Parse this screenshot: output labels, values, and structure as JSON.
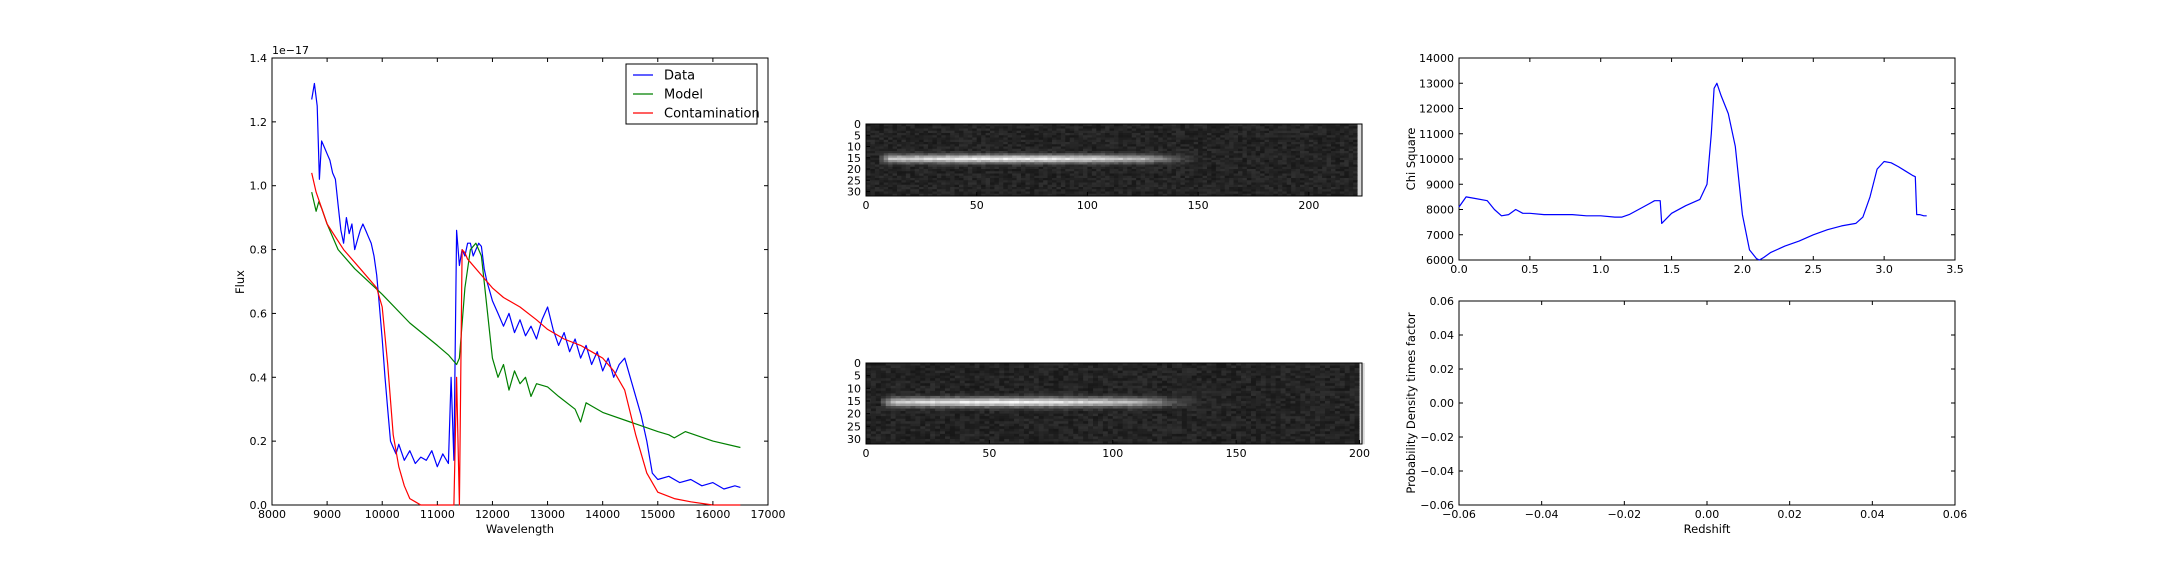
{
  "chart_data": [
    {
      "type": "line",
      "xlabel": "Wavelength",
      "ylabel": "Flux",
      "offset_text": "1e−17",
      "xlim": [
        8000,
        17000
      ],
      "ylim": [
        0,
        1.4
      ],
      "xticks": [
        "8000",
        "9000",
        "10000",
        "11000",
        "12000",
        "13000",
        "14000",
        "15000",
        "16000",
        "17000"
      ],
      "xtick_values": [
        8000,
        9000,
        10000,
        11000,
        12000,
        13000,
        14000,
        15000,
        16000,
        17000
      ],
      "yticks": [
        "0.0",
        "0.2",
        "0.4",
        "0.6",
        "0.8",
        "1.0",
        "1.2",
        "1.4"
      ],
      "ytick_values": [
        0,
        0.2,
        0.4,
        0.6,
        0.8,
        1.0,
        1.2,
        1.4
      ],
      "legend_position": "top-right",
      "series": [
        {
          "name": "Data",
          "color": "#0000ff",
          "x": [
            8720,
            8770,
            8820,
            8860,
            8900,
            8950,
            9000,
            9050,
            9100,
            9150,
            9200,
            9250,
            9300,
            9350,
            9400,
            9450,
            9500,
            9550,
            9600,
            9650,
            9700,
            9750,
            9800,
            9850,
            9900,
            9950,
            10000,
            10050,
            10100,
            10150,
            10200,
            10250,
            10300,
            10400,
            10500,
            10600,
            10700,
            10800,
            10900,
            11000,
            11100,
            11200,
            11250,
            11300,
            11350,
            11400,
            11450,
            11500,
            11550,
            11600,
            11650,
            11700,
            11750,
            11800,
            11850,
            11900,
            11950,
            12000,
            12100,
            12200,
            12300,
            12400,
            12500,
            12600,
            12700,
            12800,
            12900,
            13000,
            13100,
            13200,
            13300,
            13400,
            13500,
            13600,
            13700,
            13800,
            13900,
            14000,
            14100,
            14200,
            14300,
            14400,
            14500,
            14600,
            14700,
            14800,
            14900,
            15000,
            15200,
            15400,
            15600,
            15800,
            16000,
            16200,
            16400,
            16500
          ],
          "y": [
            1.27,
            1.32,
            1.25,
            1.02,
            1.14,
            1.12,
            1.1,
            1.08,
            1.04,
            1.02,
            0.94,
            0.86,
            0.82,
            0.9,
            0.85,
            0.88,
            0.8,
            0.83,
            0.86,
            0.88,
            0.86,
            0.84,
            0.82,
            0.78,
            0.72,
            0.62,
            0.52,
            0.4,
            0.3,
            0.2,
            0.18,
            0.16,
            0.19,
            0.14,
            0.17,
            0.13,
            0.15,
            0.14,
            0.17,
            0.12,
            0.16,
            0.13,
            0.4,
            0.14,
            0.86,
            0.75,
            0.8,
            0.78,
            0.82,
            0.82,
            0.78,
            0.8,
            0.82,
            0.81,
            0.74,
            0.7,
            0.67,
            0.64,
            0.6,
            0.56,
            0.6,
            0.54,
            0.58,
            0.53,
            0.56,
            0.52,
            0.58,
            0.62,
            0.55,
            0.5,
            0.54,
            0.48,
            0.52,
            0.46,
            0.5,
            0.44,
            0.48,
            0.42,
            0.46,
            0.4,
            0.44,
            0.46,
            0.4,
            0.34,
            0.28,
            0.2,
            0.1,
            0.08,
            0.09,
            0.07,
            0.08,
            0.06,
            0.07,
            0.05,
            0.06,
            0.055
          ]
        },
        {
          "name": "Model",
          "color": "#008000",
          "x": [
            8720,
            8800,
            8850,
            8900,
            9000,
            9200,
            9500,
            10000,
            10500,
            11000,
            11200,
            11350,
            11400,
            11500,
            11600,
            11700,
            11800,
            11900,
            12000,
            12100,
            12200,
            12300,
            12400,
            12500,
            12600,
            12700,
            12800,
            13000,
            13200,
            13500,
            13600,
            13700,
            13800,
            14000,
            14500,
            15000,
            15200,
            15300,
            15500,
            16000,
            16500
          ],
          "y": [
            0.98,
            0.92,
            0.95,
            0.93,
            0.88,
            0.8,
            0.74,
            0.66,
            0.57,
            0.5,
            0.47,
            0.44,
            0.46,
            0.68,
            0.8,
            0.82,
            0.78,
            0.62,
            0.46,
            0.4,
            0.44,
            0.36,
            0.42,
            0.38,
            0.4,
            0.34,
            0.38,
            0.37,
            0.34,
            0.3,
            0.26,
            0.32,
            0.31,
            0.29,
            0.26,
            0.23,
            0.22,
            0.21,
            0.23,
            0.2,
            0.18
          ]
        },
        {
          "name": "Contamination",
          "color": "#ff0000",
          "x": [
            8720,
            8800,
            9000,
            9300,
            9600,
            9900,
            10000,
            10100,
            10200,
            10300,
            10400,
            10500,
            10600,
            10700,
            11000,
            11300,
            11350,
            11400,
            11450,
            11500,
            11550,
            11600,
            11800,
            12000,
            12200,
            12500,
            12800,
            13000,
            13300,
            13600,
            13800,
            14000,
            14200,
            14400,
            14600,
            14800,
            15000,
            15300,
            15600,
            16000,
            16500
          ],
          "y": [
            1.04,
            0.98,
            0.88,
            0.8,
            0.74,
            0.68,
            0.62,
            0.44,
            0.22,
            0.12,
            0.06,
            0.02,
            0.01,
            0.0,
            0.0,
            0.0,
            0.4,
            0.0,
            0.8,
            0.79,
            0.77,
            0.76,
            0.72,
            0.68,
            0.65,
            0.62,
            0.58,
            0.55,
            0.52,
            0.5,
            0.48,
            0.46,
            0.42,
            0.36,
            0.22,
            0.1,
            0.04,
            0.02,
            0.01,
            0.0,
            0.0
          ]
        }
      ]
    },
    {
      "type": "heatmap",
      "xlim": [
        0,
        224
      ],
      "ylim": [
        32,
        0
      ],
      "xticks": [
        "0",
        "50",
        "100",
        "150",
        "200"
      ],
      "xtick_values": [
        0,
        50,
        100,
        150,
        200
      ],
      "yticks": [
        "0",
        "5",
        "10",
        "15",
        "20",
        "25",
        "30"
      ],
      "ytick_values": [
        0,
        5,
        10,
        15,
        20,
        25,
        30
      ],
      "trace_row": 15,
      "trace_start": 5,
      "trace_end": 125,
      "colormap": "gray"
    },
    {
      "type": "heatmap",
      "xlim": [
        0,
        201
      ],
      "ylim": [
        32,
        0
      ],
      "xticks": [
        "0",
        "50",
        "100",
        "150",
        "200"
      ],
      "xtick_values": [
        0,
        50,
        100,
        150,
        200
      ],
      "yticks": [
        "0",
        "5",
        "10",
        "15",
        "20",
        "25",
        "30"
      ],
      "ytick_values": [
        0,
        5,
        10,
        15,
        20,
        25,
        30
      ],
      "trace_row": 15,
      "trace_start": 5,
      "trace_end": 110,
      "colormap": "gray"
    },
    {
      "type": "line",
      "ylabel": "Chi Square",
      "xlim": [
        0,
        3.5
      ],
      "ylim": [
        6000,
        14000
      ],
      "xticks": [
        "0.0",
        "0.5",
        "1.0",
        "1.5",
        "2.0",
        "2.5",
        "3.0",
        "3.5"
      ],
      "xtick_values": [
        0,
        0.5,
        1.0,
        1.5,
        2.0,
        2.5,
        3.0,
        3.5
      ],
      "yticks": [
        "6000",
        "7000",
        "8000",
        "9000",
        "10000",
        "11000",
        "12000",
        "13000",
        "14000"
      ],
      "ytick_values": [
        6000,
        7000,
        8000,
        9000,
        10000,
        11000,
        12000,
        13000,
        14000
      ],
      "series": [
        {
          "color": "#0000ff",
          "x": [
            0,
            0.05,
            0.1,
            0.2,
            0.25,
            0.3,
            0.35,
            0.4,
            0.45,
            0.5,
            0.6,
            0.7,
            0.8,
            0.9,
            1.0,
            1.1,
            1.15,
            1.2,
            1.3,
            1.38,
            1.42,
            1.43,
            1.5,
            1.6,
            1.7,
            1.75,
            1.78,
            1.8,
            1.82,
            1.85,
            1.9,
            1.95,
            2.0,
            2.05,
            2.1,
            2.12,
            2.15,
            2.2,
            2.3,
            2.4,
            2.5,
            2.6,
            2.7,
            2.8,
            2.85,
            2.9,
            2.95,
            3.0,
            3.05,
            3.1,
            3.2,
            3.22,
            3.23,
            3.25,
            3.28,
            3.3
          ],
          "y": [
            8100,
            8500,
            8450,
            8350,
            8000,
            7750,
            7800,
            8000,
            7850,
            7850,
            7800,
            7800,
            7800,
            7750,
            7750,
            7700,
            7700,
            7800,
            8100,
            8350,
            8350,
            7450,
            7850,
            8150,
            8400,
            9000,
            11000,
            12800,
            13000,
            12500,
            11800,
            10500,
            7800,
            6400,
            6050,
            6000,
            6100,
            6300,
            6550,
            6750,
            7000,
            7200,
            7350,
            7450,
            7700,
            8500,
            9600,
            9900,
            9850,
            9700,
            9350,
            9300,
            7800,
            7800,
            7750,
            7750
          ]
        }
      ]
    },
    {
      "type": "line",
      "xlabel": "Redshift",
      "ylabel": "Probability Density times factor",
      "xlim": [
        -0.06,
        0.06
      ],
      "ylim": [
        -0.06,
        0.06
      ],
      "xticks": [
        "−0.06",
        "−0.04",
        "−0.02",
        "0.00",
        "0.02",
        "0.04",
        "0.06"
      ],
      "xtick_values": [
        -0.06,
        -0.04,
        -0.02,
        0.0,
        0.02,
        0.04,
        0.06
      ],
      "yticks": [
        "−0.06",
        "−0.04",
        "−0.02",
        "0.00",
        "0.02",
        "0.04",
        "0.06"
      ],
      "ytick_values": [
        -0.06,
        -0.04,
        -0.02,
        0.0,
        0.02,
        0.04,
        0.06
      ],
      "series": []
    }
  ]
}
